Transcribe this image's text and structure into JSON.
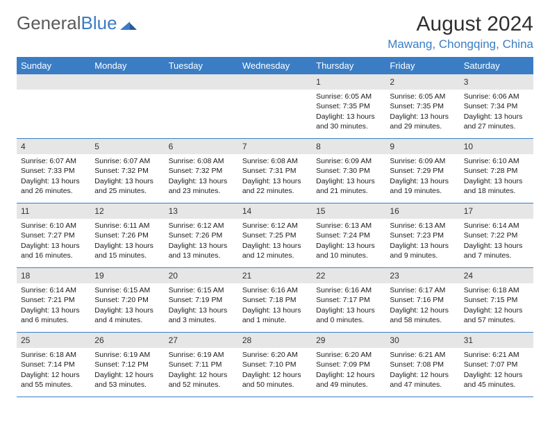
{
  "brand": {
    "name_a": "General",
    "name_b": "Blue"
  },
  "title": "August 2024",
  "location": "Mawang, Chongqing, China",
  "weekdays": [
    "Sunday",
    "Monday",
    "Tuesday",
    "Wednesday",
    "Thursday",
    "Friday",
    "Saturday"
  ],
  "colors": {
    "accent": "#3a7dc4",
    "header_bg": "#3a7dc4",
    "day_num_bg": "#e6e6e6",
    "text": "#1a1a1a",
    "muted": "#5a5a5a"
  },
  "weeks": [
    [
      {
        "n": "",
        "sr": "",
        "ss": "",
        "dl": ""
      },
      {
        "n": "",
        "sr": "",
        "ss": "",
        "dl": ""
      },
      {
        "n": "",
        "sr": "",
        "ss": "",
        "dl": ""
      },
      {
        "n": "",
        "sr": "",
        "ss": "",
        "dl": ""
      },
      {
        "n": "1",
        "sr": "Sunrise: 6:05 AM",
        "ss": "Sunset: 7:35 PM",
        "dl": "Daylight: 13 hours and 30 minutes."
      },
      {
        "n": "2",
        "sr": "Sunrise: 6:05 AM",
        "ss": "Sunset: 7:35 PM",
        "dl": "Daylight: 13 hours and 29 minutes."
      },
      {
        "n": "3",
        "sr": "Sunrise: 6:06 AM",
        "ss": "Sunset: 7:34 PM",
        "dl": "Daylight: 13 hours and 27 minutes."
      }
    ],
    [
      {
        "n": "4",
        "sr": "Sunrise: 6:07 AM",
        "ss": "Sunset: 7:33 PM",
        "dl": "Daylight: 13 hours and 26 minutes."
      },
      {
        "n": "5",
        "sr": "Sunrise: 6:07 AM",
        "ss": "Sunset: 7:32 PM",
        "dl": "Daylight: 13 hours and 25 minutes."
      },
      {
        "n": "6",
        "sr": "Sunrise: 6:08 AM",
        "ss": "Sunset: 7:32 PM",
        "dl": "Daylight: 13 hours and 23 minutes."
      },
      {
        "n": "7",
        "sr": "Sunrise: 6:08 AM",
        "ss": "Sunset: 7:31 PM",
        "dl": "Daylight: 13 hours and 22 minutes."
      },
      {
        "n": "8",
        "sr": "Sunrise: 6:09 AM",
        "ss": "Sunset: 7:30 PM",
        "dl": "Daylight: 13 hours and 21 minutes."
      },
      {
        "n": "9",
        "sr": "Sunrise: 6:09 AM",
        "ss": "Sunset: 7:29 PM",
        "dl": "Daylight: 13 hours and 19 minutes."
      },
      {
        "n": "10",
        "sr": "Sunrise: 6:10 AM",
        "ss": "Sunset: 7:28 PM",
        "dl": "Daylight: 13 hours and 18 minutes."
      }
    ],
    [
      {
        "n": "11",
        "sr": "Sunrise: 6:10 AM",
        "ss": "Sunset: 7:27 PM",
        "dl": "Daylight: 13 hours and 16 minutes."
      },
      {
        "n": "12",
        "sr": "Sunrise: 6:11 AM",
        "ss": "Sunset: 7:26 PM",
        "dl": "Daylight: 13 hours and 15 minutes."
      },
      {
        "n": "13",
        "sr": "Sunrise: 6:12 AM",
        "ss": "Sunset: 7:26 PM",
        "dl": "Daylight: 13 hours and 13 minutes."
      },
      {
        "n": "14",
        "sr": "Sunrise: 6:12 AM",
        "ss": "Sunset: 7:25 PM",
        "dl": "Daylight: 13 hours and 12 minutes."
      },
      {
        "n": "15",
        "sr": "Sunrise: 6:13 AM",
        "ss": "Sunset: 7:24 PM",
        "dl": "Daylight: 13 hours and 10 minutes."
      },
      {
        "n": "16",
        "sr": "Sunrise: 6:13 AM",
        "ss": "Sunset: 7:23 PM",
        "dl": "Daylight: 13 hours and 9 minutes."
      },
      {
        "n": "17",
        "sr": "Sunrise: 6:14 AM",
        "ss": "Sunset: 7:22 PM",
        "dl": "Daylight: 13 hours and 7 minutes."
      }
    ],
    [
      {
        "n": "18",
        "sr": "Sunrise: 6:14 AM",
        "ss": "Sunset: 7:21 PM",
        "dl": "Daylight: 13 hours and 6 minutes."
      },
      {
        "n": "19",
        "sr": "Sunrise: 6:15 AM",
        "ss": "Sunset: 7:20 PM",
        "dl": "Daylight: 13 hours and 4 minutes."
      },
      {
        "n": "20",
        "sr": "Sunrise: 6:15 AM",
        "ss": "Sunset: 7:19 PM",
        "dl": "Daylight: 13 hours and 3 minutes."
      },
      {
        "n": "21",
        "sr": "Sunrise: 6:16 AM",
        "ss": "Sunset: 7:18 PM",
        "dl": "Daylight: 13 hours and 1 minute."
      },
      {
        "n": "22",
        "sr": "Sunrise: 6:16 AM",
        "ss": "Sunset: 7:17 PM",
        "dl": "Daylight: 13 hours and 0 minutes."
      },
      {
        "n": "23",
        "sr": "Sunrise: 6:17 AM",
        "ss": "Sunset: 7:16 PM",
        "dl": "Daylight: 12 hours and 58 minutes."
      },
      {
        "n": "24",
        "sr": "Sunrise: 6:18 AM",
        "ss": "Sunset: 7:15 PM",
        "dl": "Daylight: 12 hours and 57 minutes."
      }
    ],
    [
      {
        "n": "25",
        "sr": "Sunrise: 6:18 AM",
        "ss": "Sunset: 7:14 PM",
        "dl": "Daylight: 12 hours and 55 minutes."
      },
      {
        "n": "26",
        "sr": "Sunrise: 6:19 AM",
        "ss": "Sunset: 7:12 PM",
        "dl": "Daylight: 12 hours and 53 minutes."
      },
      {
        "n": "27",
        "sr": "Sunrise: 6:19 AM",
        "ss": "Sunset: 7:11 PM",
        "dl": "Daylight: 12 hours and 52 minutes."
      },
      {
        "n": "28",
        "sr": "Sunrise: 6:20 AM",
        "ss": "Sunset: 7:10 PM",
        "dl": "Daylight: 12 hours and 50 minutes."
      },
      {
        "n": "29",
        "sr": "Sunrise: 6:20 AM",
        "ss": "Sunset: 7:09 PM",
        "dl": "Daylight: 12 hours and 49 minutes."
      },
      {
        "n": "30",
        "sr": "Sunrise: 6:21 AM",
        "ss": "Sunset: 7:08 PM",
        "dl": "Daylight: 12 hours and 47 minutes."
      },
      {
        "n": "31",
        "sr": "Sunrise: 6:21 AM",
        "ss": "Sunset: 7:07 PM",
        "dl": "Daylight: 12 hours and 45 minutes."
      }
    ]
  ]
}
